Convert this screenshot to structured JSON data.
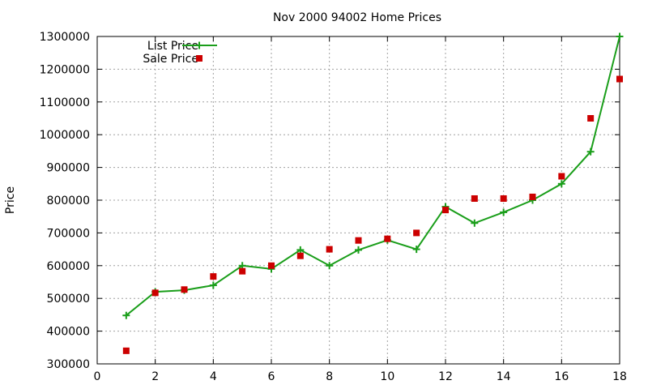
{
  "chart_data": {
    "type": "line",
    "title": "Nov 2000 94002 Home Prices",
    "xlabel": "",
    "ylabel": "Price",
    "xlim": [
      0,
      18
    ],
    "ylim": [
      300000,
      1300000
    ],
    "xticks": [
      0,
      2,
      4,
      6,
      8,
      10,
      12,
      14,
      16,
      18
    ],
    "yticks": [
      300000,
      400000,
      500000,
      600000,
      700000,
      800000,
      900000,
      1000000,
      1100000,
      1200000,
      1300000
    ],
    "grid": true,
    "legend_position": "top-left",
    "series": [
      {
        "name": "List Price",
        "style": "line+cross",
        "color": "#1a9e1a",
        "x": [
          1,
          2,
          3,
          4,
          5,
          6,
          7,
          8,
          9,
          10,
          11,
          12,
          13,
          14,
          15,
          16,
          17,
          18
        ],
        "y": [
          448000,
          520000,
          525000,
          540000,
          600000,
          590000,
          648000,
          600000,
          648000,
          678000,
          650000,
          780000,
          730000,
          763000,
          800000,
          850000,
          948000,
          1300000
        ]
      },
      {
        "name": "Sale Price",
        "style": "square-points",
        "color": "#cc0000",
        "x": [
          1,
          2,
          3,
          4,
          5,
          6,
          7,
          8,
          9,
          10,
          11,
          12,
          13,
          14,
          15,
          16,
          17,
          18
        ],
        "y": [
          340000,
          517000,
          527000,
          567000,
          583000,
          600000,
          630000,
          650000,
          677000,
          682000,
          700000,
          770000,
          805000,
          805000,
          810000,
          873000,
          1050000,
          1170000
        ]
      }
    ]
  }
}
